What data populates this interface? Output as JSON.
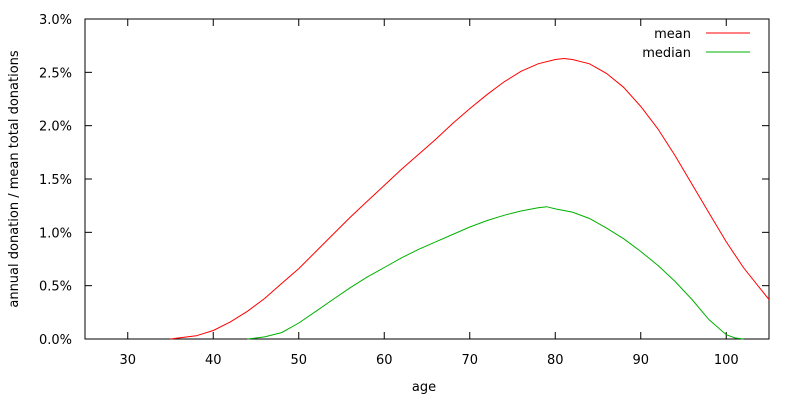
{
  "chart_data": {
    "type": "line",
    "title": "",
    "xlabel": "age",
    "ylabel": "annual donation / mean total donations",
    "xlim": [
      25,
      105
    ],
    "ylim": [
      0,
      3.0
    ],
    "x_ticks": [
      30,
      40,
      50,
      60,
      70,
      80,
      90,
      100
    ],
    "x_tick_labels": [
      "30",
      "40",
      "50",
      "60",
      "70",
      "80",
      "90",
      "100"
    ],
    "y_ticks": [
      0,
      0.5,
      1.0,
      1.5,
      2.0,
      2.5,
      3.0
    ],
    "y_tick_labels": [
      "0.0%",
      "0.5%",
      "1.0%",
      "1.5%",
      "2.0%",
      "2.5%",
      "3.0%"
    ],
    "grid": false,
    "legend_position": "top-right",
    "series": [
      {
        "name": "mean",
        "color": "#ff0000",
        "x": [
          35,
          36,
          38,
          40,
          42,
          44,
          46,
          48,
          50,
          52,
          54,
          56,
          58,
          60,
          62,
          64,
          66,
          68,
          70,
          72,
          74,
          76,
          78,
          80,
          81,
          82,
          84,
          86,
          88,
          90,
          92,
          94,
          96,
          98,
          100,
          102,
          104,
          105
        ],
        "values": [
          0.0,
          0.01,
          0.03,
          0.08,
          0.16,
          0.26,
          0.38,
          0.52,
          0.66,
          0.82,
          0.98,
          1.14,
          1.29,
          1.44,
          1.59,
          1.73,
          1.87,
          2.02,
          2.16,
          2.29,
          2.41,
          2.51,
          2.58,
          2.62,
          2.63,
          2.62,
          2.58,
          2.49,
          2.36,
          2.18,
          1.97,
          1.72,
          1.45,
          1.18,
          0.91,
          0.67,
          0.47,
          0.37
        ]
      },
      {
        "name": "median",
        "color": "#00b000",
        "x": [
          44,
          46,
          48,
          50,
          52,
          54,
          56,
          58,
          60,
          62,
          64,
          66,
          68,
          70,
          72,
          74,
          76,
          78,
          79,
          80,
          82,
          84,
          86,
          88,
          90,
          92,
          94,
          96,
          98,
          100,
          101,
          102
        ],
        "values": [
          0.0,
          0.02,
          0.06,
          0.15,
          0.26,
          0.37,
          0.48,
          0.58,
          0.67,
          0.76,
          0.84,
          0.91,
          0.98,
          1.05,
          1.11,
          1.16,
          1.2,
          1.23,
          1.24,
          1.22,
          1.19,
          1.13,
          1.04,
          0.94,
          0.82,
          0.69,
          0.54,
          0.37,
          0.18,
          0.04,
          0.01,
          0.0
        ]
      }
    ]
  }
}
